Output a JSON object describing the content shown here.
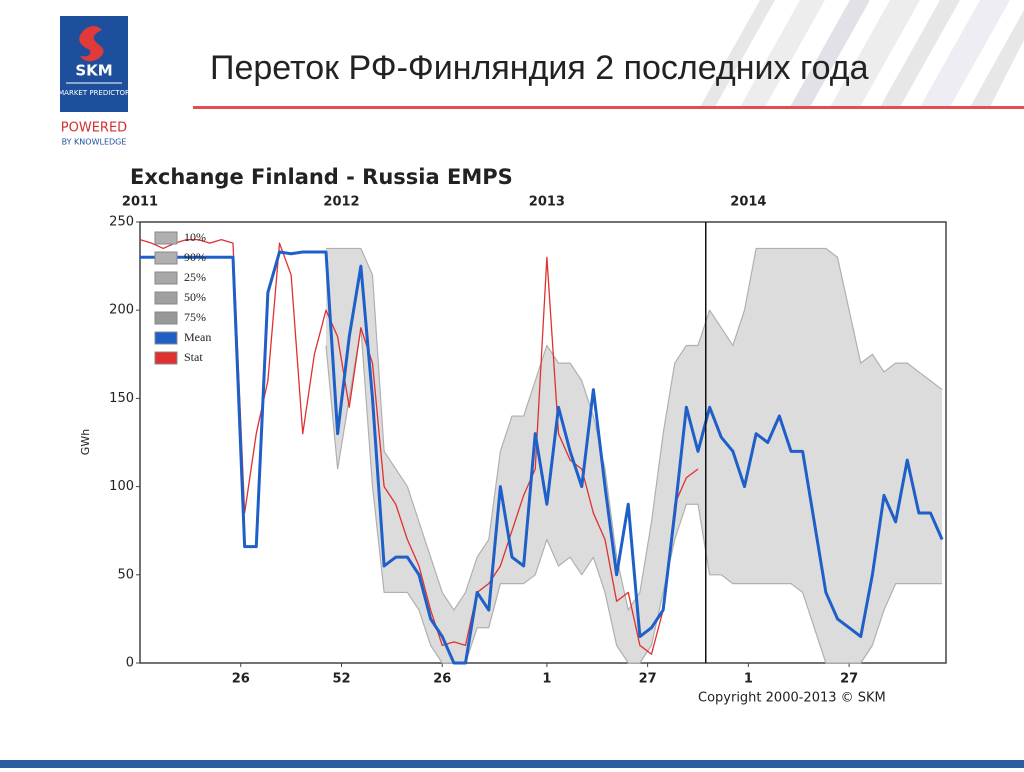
{
  "header": {
    "logo": "SKM",
    "logo_sub": "MARKET PREDICTOR",
    "powered": "POWERED",
    "powered_sub": "BY KNOWLEDGE",
    "title": "Переток РФ-Финляндия 2 последних года"
  },
  "chart_data": {
    "type": "line",
    "title": "Exchange Finland - Russia EMPS",
    "y_label": "GWh",
    "copyright": "Copyright 2000-2013 © SKM",
    "xlim": [
      0,
      208
    ],
    "ylim": [
      0,
      250
    ],
    "yticks": [
      0,
      50,
      100,
      150,
      200,
      250
    ],
    "xticks": [
      {
        "value": 26,
        "label": "26"
      },
      {
        "value": 52,
        "label": "52"
      },
      {
        "value": 78,
        "label": "26"
      },
      {
        "value": 105,
        "label": "1"
      },
      {
        "value": 131,
        "label": "27"
      },
      {
        "value": 157,
        "label": "1"
      },
      {
        "value": 183,
        "label": "27"
      }
    ],
    "x2ticks": [
      {
        "value": 0,
        "label": "2011"
      },
      {
        "value": 52,
        "label": "2012"
      },
      {
        "value": 105,
        "label": "2013"
      },
      {
        "value": 157,
        "label": "2014"
      }
    ],
    "divider": 146,
    "x": [
      0,
      3,
      6,
      9,
      12,
      15,
      18,
      21,
      24,
      27,
      30,
      33,
      36,
      39,
      42,
      45,
      48,
      51,
      54,
      57,
      60,
      63,
      66,
      69,
      72,
      75,
      78,
      81,
      84,
      87,
      90,
      93,
      96,
      99,
      102,
      105,
      108,
      111,
      114,
      117,
      120,
      123,
      126,
      129,
      132,
      135,
      138,
      141,
      144,
      147,
      150,
      153,
      156,
      159,
      162,
      165,
      168,
      171,
      174,
      177,
      180,
      183,
      186,
      189,
      192,
      195,
      198,
      201,
      204,
      207
    ],
    "series": [
      {
        "name": "10%",
        "color": "#b0b0b0",
        "values": [
          null,
          null,
          null,
          null,
          null,
          null,
          null,
          null,
          null,
          null,
          null,
          null,
          null,
          null,
          null,
          null,
          180,
          110,
          150,
          190,
          100,
          40,
          40,
          40,
          30,
          10,
          0,
          0,
          0,
          20,
          20,
          45,
          45,
          45,
          50,
          70,
          55,
          60,
          50,
          60,
          40,
          10,
          0,
          0,
          10,
          40,
          70,
          90,
          90,
          50,
          50,
          45,
          45,
          45,
          45,
          45,
          45,
          40,
          20,
          0,
          0,
          0,
          0,
          10,
          30,
          45,
          45,
          45,
          45,
          45
        ]
      },
      {
        "name": "90%",
        "color": "#b0b0b0",
        "values": [
          null,
          null,
          null,
          null,
          null,
          null,
          null,
          null,
          null,
          null,
          null,
          null,
          null,
          null,
          null,
          null,
          235,
          235,
          235,
          235,
          220,
          120,
          110,
          100,
          80,
          60,
          40,
          30,
          40,
          60,
          70,
          120,
          140,
          140,
          160,
          180,
          170,
          170,
          160,
          140,
          110,
          60,
          30,
          40,
          80,
          130,
          170,
          180,
          180,
          200,
          190,
          180,
          200,
          235,
          235,
          235,
          235,
          235,
          235,
          235,
          230,
          200,
          170,
          175,
          165,
          170,
          170,
          165,
          160,
          155
        ]
      },
      {
        "name": "Mean",
        "color": "#1f5fc8",
        "values": [
          230,
          230,
          230,
          230,
          230,
          230,
          230,
          230,
          230,
          66,
          66,
          210,
          233,
          232,
          233,
          233,
          233,
          130,
          185,
          225,
          150,
          55,
          60,
          60,
          50,
          25,
          15,
          0,
          0,
          40,
          30,
          100,
          60,
          55,
          130,
          90,
          145,
          120,
          100,
          155,
          100,
          50,
          90,
          15,
          20,
          30,
          85,
          145,
          120,
          145,
          128,
          120,
          100,
          130,
          125,
          140,
          120,
          120,
          80,
          40,
          25,
          20,
          15,
          50,
          95,
          80,
          115,
          85,
          85,
          70
        ]
      },
      {
        "name": "Stat",
        "color": "#e03030",
        "values": [
          240,
          238,
          235,
          238,
          240,
          240,
          238,
          240,
          238,
          85,
          130,
          160,
          238,
          220,
          130,
          175,
          200,
          185,
          145,
          190,
          170,
          100,
          90,
          70,
          55,
          30,
          10,
          12,
          10,
          40,
          45,
          55,
          75,
          95,
          110,
          230,
          130,
          115,
          110,
          85,
          70,
          35,
          40,
          10,
          5,
          30,
          90,
          105,
          110,
          null,
          null,
          null,
          null,
          null,
          null,
          null,
          null,
          null,
          null,
          null,
          null,
          null,
          null,
          null,
          null,
          null,
          null,
          null,
          null,
          null
        ]
      }
    ],
    "legend_extra": [
      {
        "name": "25%",
        "color": "#a8a8a8"
      },
      {
        "name": "50%",
        "color": "#a0a0a0"
      },
      {
        "name": "75%",
        "color": "#989898"
      }
    ]
  }
}
